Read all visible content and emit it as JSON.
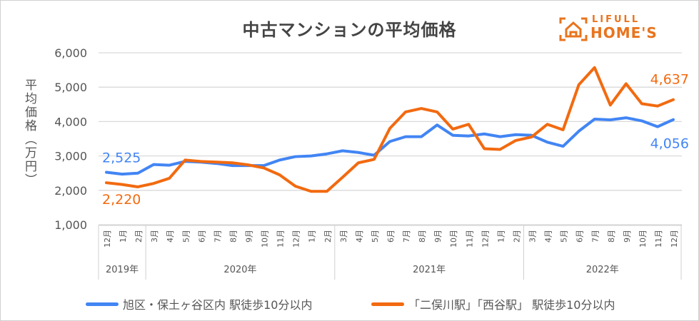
{
  "chart_data": {
    "type": "line",
    "title": "中古マンションの平均価格",
    "ylabel": "平均価格（万円）",
    "xlabel": "",
    "ylim": [
      1000,
      6000
    ],
    "yticks": [
      "1,000",
      "2,000",
      "3,000",
      "4,000",
      "5,000",
      "6,000"
    ],
    "ytick_values": [
      1000,
      2000,
      3000,
      4000,
      5000,
      6000
    ],
    "grid": true,
    "legend_position": "bottom",
    "x_months": [
      "12月",
      "1月",
      "2月",
      "3月",
      "4月",
      "5月",
      "6月",
      "7月",
      "8月",
      "9月",
      "10月",
      "11月",
      "12月",
      "1月",
      "2月",
      "3月",
      "4月",
      "5月",
      "6月",
      "7月",
      "8月",
      "9月",
      "10月",
      "11月",
      "12月",
      "1月",
      "2月",
      "3月",
      "4月",
      "5月",
      "6月",
      "7月",
      "8月",
      "9月",
      "10月",
      "11月",
      "12月"
    ],
    "year_groups": [
      {
        "label": "2019年",
        "start": 0,
        "end": 2
      },
      {
        "label": "2020年",
        "start": 3,
        "end": 14
      },
      {
        "label": "2021年",
        "start": 15,
        "end": 26
      },
      {
        "label": "2022年",
        "start": 27,
        "end": 36
      }
    ],
    "series": [
      {
        "name": "旭区・保土ヶ谷区内 駅徒歩10分以内",
        "color": "#4285f4",
        "values": [
          2525,
          2470,
          2500,
          2750,
          2730,
          2840,
          2820,
          2780,
          2720,
          2720,
          2720,
          2880,
          2980,
          3000,
          3060,
          3150,
          3100,
          3020,
          3420,
          3560,
          3560,
          3900,
          3600,
          3580,
          3640,
          3560,
          3620,
          3600,
          3400,
          3280,
          3720,
          4070,
          4050,
          4110,
          4020,
          3850,
          4056
        ],
        "start_label": "2,525",
        "end_label": "4,056"
      },
      {
        "name": "「二俣川駅」「西谷駅」 駅徒歩10分以内",
        "color": "#f26a10",
        "values": [
          2220,
          2170,
          2100,
          2200,
          2350,
          2880,
          2840,
          2820,
          2800,
          2740,
          2650,
          2450,
          2120,
          1970,
          1970,
          2380,
          2800,
          2900,
          3800,
          4280,
          4380,
          4280,
          3780,
          3920,
          3210,
          3190,
          3450,
          3550,
          3920,
          3760,
          5070,
          5570,
          4480,
          5100,
          4520,
          4450,
          4637
        ],
        "start_label": "2,220",
        "end_label": "4,637"
      }
    ]
  },
  "logo": {
    "line1": "LIFULL",
    "line2": "HOME'S"
  }
}
